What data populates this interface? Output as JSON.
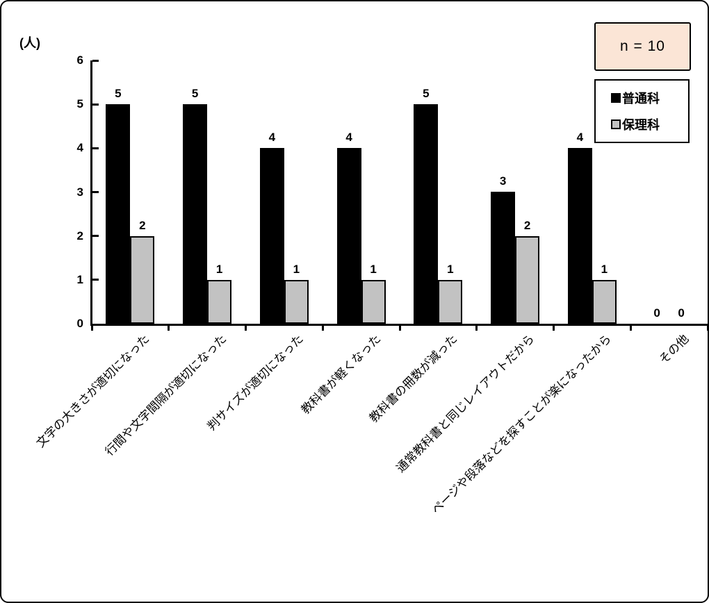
{
  "frame": {
    "background": "#ffffff",
    "border_color": "#000000"
  },
  "annotations": {
    "n_label": "n = 10",
    "n_box_fill": "#fbe5d6"
  },
  "chart_data": {
    "type": "bar",
    "title": "",
    "unit_label": "(人)",
    "categories": [
      "文字の大きさが適切になった",
      "行間や文字間隔が適切になった",
      "判サイズが適切になった",
      "教科書が軽くなった",
      "教科書の冊数が減った",
      "通常教科書と同じレイアウトだから",
      "ページや段落などを探すことが楽になったから",
      "その他"
    ],
    "series": [
      {
        "name": "普通科",
        "color": "#000000",
        "values": [
          5,
          5,
          4,
          4,
          5,
          3,
          4,
          0
        ]
      },
      {
        "name": "保理科",
        "color": "#c2c2c2",
        "values": [
          2,
          1,
          1,
          1,
          1,
          2,
          1,
          0
        ]
      }
    ],
    "ylim": [
      0,
      6
    ],
    "yticks": [
      0,
      1,
      2,
      3,
      4,
      5,
      6
    ],
    "xlabel": "",
    "ylabel": "(人)",
    "grid": false,
    "bar_value_labels": true,
    "legend_position": "top-right",
    "x_label_rotation_deg": 45
  }
}
